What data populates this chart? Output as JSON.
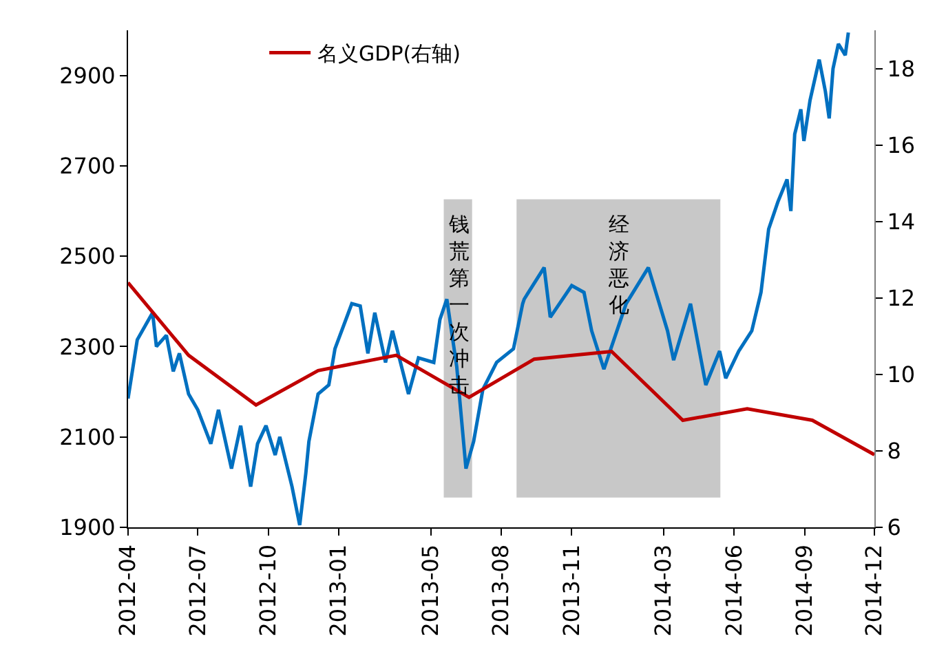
{
  "chart_data": {
    "type": "line",
    "xlim": [
      "2012-04-01",
      "2014-12-01"
    ],
    "xticks": [
      "2012-04",
      "2012-07",
      "2012-10",
      "2013-01",
      "2013-05",
      "2013-08",
      "2013-11",
      "2014-03",
      "2014-06",
      "2014-09",
      "2014-12"
    ],
    "ylim": [
      1900,
      3000
    ],
    "yticks": [
      1900,
      2100,
      2300,
      2500,
      2700,
      2900
    ],
    "y2lim": [
      6,
      19
    ],
    "y2ticks": [
      6,
      8,
      10,
      12,
      14,
      16,
      18
    ],
    "series": [
      {
        "color": "#0070c0",
        "x": [
          "2012-04-01",
          "2012-04-13",
          "2012-05-03",
          "2012-05-08",
          "2012-05-21",
          "2012-05-30",
          "2012-06-07",
          "2012-06-19",
          "2012-07-01",
          "2012-07-18",
          "2012-07-28",
          "2012-08-14",
          "2012-08-26",
          "2012-09-08",
          "2012-09-17",
          "2012-09-28",
          "2012-10-10",
          "2012-10-16",
          "2012-11-01",
          "2012-11-11",
          "2012-11-19",
          "2012-11-23",
          "2012-12-05",
          "2012-12-19",
          "2012-12-27",
          "2013-01-18",
          "2013-01-29",
          "2013-02-08",
          "2013-02-17",
          "2013-03-03",
          "2013-03-12",
          "2013-04-02",
          "2013-04-15",
          "2013-05-05",
          "2013-05-13",
          "2013-05-22",
          "2013-06-04",
          "2013-06-16",
          "2013-06-26",
          "2013-07-08",
          "2013-07-26",
          "2013-08-17",
          "2013-08-29",
          "2013-08-31",
          "2013-09-26",
          "2013-10-04",
          "2013-11-01",
          "2013-11-17",
          "2013-11-27",
          "2013-12-13",
          "2014-01-11",
          "2014-02-09",
          "2014-03-06",
          "2014-03-14",
          "2014-04-05",
          "2014-04-25",
          "2014-05-13",
          "2014-05-21",
          "2014-06-07",
          "2014-06-24",
          "2014-07-06",
          "2014-07-16",
          "2014-07-28",
          "2014-08-09",
          "2014-08-14",
          "2014-08-19",
          "2014-08-27",
          "2014-08-31",
          "2014-09-08",
          "2014-09-20",
          "2014-09-28",
          "2014-10-03",
          "2014-10-08",
          "2014-10-15",
          "2014-10-24",
          "2014-10-28"
        ],
        "values": [
          2185,
          2315,
          2375,
          2300,
          2325,
          2245,
          2285,
          2195,
          2160,
          2085,
          2160,
          2030,
          2125,
          1990,
          2085,
          2125,
          2060,
          2100,
          1990,
          1905,
          2020,
          2090,
          2195,
          2215,
          2295,
          2395,
          2390,
          2285,
          2375,
          2265,
          2335,
          2195,
          2275,
          2265,
          2360,
          2405,
          2255,
          2030,
          2090,
          2205,
          2265,
          2295,
          2395,
          2405,
          2475,
          2365,
          2435,
          2420,
          2335,
          2250,
          2395,
          2475,
          2335,
          2270,
          2395,
          2215,
          2290,
          2230,
          2290,
          2335,
          2420,
          2560,
          2620,
          2670,
          2600,
          2770,
          2825,
          2755,
          2845,
          2935,
          2865,
          2805,
          2915,
          2970,
          2945,
          2995
        ]
      },
      {
        "name": "名义GDP(右轴)",
        "color": "#c00000",
        "axis": "y2",
        "x": [
          "2012-04-01",
          "2012-06-19",
          "2012-09-15",
          "2012-12-05",
          "2013-03-17",
          "2013-06-20",
          "2013-09-13",
          "2013-12-23",
          "2014-03-26",
          "2014-06-18",
          "2014-09-11",
          "2014-12-01"
        ],
        "values": [
          12.4,
          10.5,
          9.2,
          10.1,
          10.5,
          9.4,
          10.4,
          10.6,
          8.8,
          9.1,
          8.8,
          7.9
        ]
      }
    ],
    "bands": [
      {
        "axis": "x",
        "from": "2013-05-18",
        "to": "2013-06-24",
        "label": "钱荒第一次冲击",
        "color": "#c8c8c8"
      },
      {
        "axis": "x",
        "from": "2013-08-21",
        "to": "2014-05-14",
        "label": "经济恶化",
        "color": "#c8c8c8"
      }
    ],
    "legend": "top left",
    "grid": false
  }
}
